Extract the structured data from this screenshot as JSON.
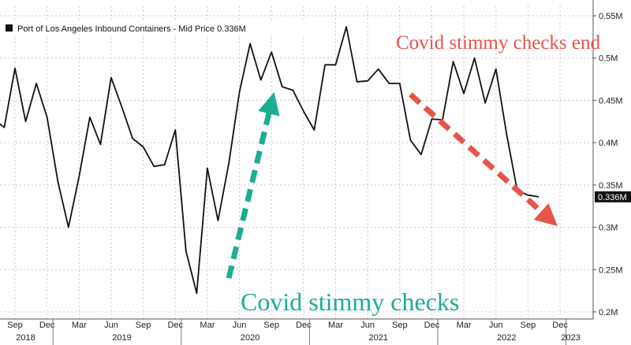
{
  "chart_data": {
    "type": "line",
    "title": "",
    "xlabel": "",
    "ylabel": "",
    "ylim": [
      0.2,
      0.55
    ],
    "y_unit_suffix": "M",
    "yticks": [
      "0.2M",
      "0.25M",
      "0.3M",
      "0.35M",
      "0.4M",
      "0.45M",
      "0.5M",
      "0.55M"
    ],
    "ytick_values": [
      0.2,
      0.25,
      0.3,
      0.35,
      0.4,
      0.45,
      0.5,
      0.55
    ],
    "grid": true,
    "y_axis_side": "right",
    "legend": {
      "placement": "top-left",
      "entries": [
        {
          "label": "Port of Los Angeles Inbound Containers - Mid Price 0.336M",
          "color": "#111111"
        }
      ]
    },
    "x_month_ticks": [
      {
        "label": "Sep",
        "date": "2018-09"
      },
      {
        "label": "Dec",
        "date": "2018-12"
      },
      {
        "label": "Mar",
        "date": "2019-03"
      },
      {
        "label": "Jun",
        "date": "2019-06"
      },
      {
        "label": "Sep",
        "date": "2019-09"
      },
      {
        "label": "Dec",
        "date": "2019-12"
      },
      {
        "label": "Mar",
        "date": "2020-03"
      },
      {
        "label": "Jun",
        "date": "2020-06"
      },
      {
        "label": "Sep",
        "date": "2020-09"
      },
      {
        "label": "Dec",
        "date": "2020-12"
      },
      {
        "label": "Mar",
        "date": "2021-03"
      },
      {
        "label": "Jun",
        "date": "2021-06"
      },
      {
        "label": "Sep",
        "date": "2021-09"
      },
      {
        "label": "Dec",
        "date": "2021-12"
      },
      {
        "label": "Mar",
        "date": "2022-03"
      },
      {
        "label": "Jun",
        "date": "2022-06"
      },
      {
        "label": "Sep",
        "date": "2022-09"
      },
      {
        "label": "Dec",
        "date": "2022-12"
      }
    ],
    "x_year_labels": [
      {
        "label": "2018",
        "date": "2018-10"
      },
      {
        "label": "2019",
        "date": "2019-07"
      },
      {
        "label": "2020",
        "date": "2020-07"
      },
      {
        "label": "2021",
        "date": "2021-07"
      },
      {
        "label": "2022",
        "date": "2022-07"
      },
      {
        "label": "2023",
        "date": "2023-01"
      }
    ],
    "series": [
      {
        "name": "Port of Los Angeles Inbound Containers - Mid Price",
        "color": "#111111",
        "x": [
          "2018-07",
          "2018-08",
          "2018-09",
          "2018-10",
          "2018-11",
          "2018-12",
          "2019-01",
          "2019-02",
          "2019-03",
          "2019-04",
          "2019-05",
          "2019-06",
          "2019-07",
          "2019-08",
          "2019-09",
          "2019-10",
          "2019-11",
          "2019-12",
          "2020-01",
          "2020-02",
          "2020-03",
          "2020-04",
          "2020-05",
          "2020-06",
          "2020-07",
          "2020-08",
          "2020-09",
          "2020-10",
          "2020-11",
          "2020-12",
          "2021-01",
          "2021-02",
          "2021-03",
          "2021-04",
          "2021-05",
          "2021-06",
          "2021-07",
          "2021-08",
          "2021-09",
          "2021-10",
          "2021-11",
          "2021-12",
          "2022-01",
          "2022-02",
          "2022-03",
          "2022-04",
          "2022-05",
          "2022-06",
          "2022-07",
          "2022-08",
          "2022-09",
          "2022-10"
        ],
        "values": [
          0.428,
          0.418,
          0.488,
          0.425,
          0.47,
          0.43,
          0.355,
          0.3,
          0.36,
          0.43,
          0.398,
          0.477,
          0.442,
          0.405,
          0.395,
          0.372,
          0.374,
          0.415,
          0.272,
          0.222,
          0.37,
          0.308,
          0.375,
          0.46,
          0.517,
          0.474,
          0.507,
          0.466,
          0.462,
          0.437,
          0.415,
          0.492,
          0.492,
          0.537,
          0.472,
          0.473,
          0.487,
          0.47,
          0.47,
          0.403,
          0.386,
          0.428,
          0.427,
          0.496,
          0.458,
          0.5,
          0.447,
          0.487,
          0.41,
          0.343,
          0.338,
          0.336
        ]
      }
    ],
    "last_value_label": "0.336M",
    "annotations": [
      {
        "text": "Covid stimmy checks end",
        "color": "#e8534a",
        "arrow_from": [
          "2021-10",
          0.457
        ],
        "arrow_to": [
          "2022-11",
          0.31
        ]
      },
      {
        "text": "Covid stimmy checks",
        "color": "#1aae92",
        "arrow_from": [
          "2020-05",
          0.24
        ],
        "arrow_to": [
          "2020-09",
          0.447
        ]
      }
    ]
  },
  "colors": {
    "background": "#ffffff",
    "grid": "#c8c8c8",
    "line": "#111111",
    "red_annotation": "#e8534a",
    "green_annotation": "#1aae92",
    "last_tag_bg": "#111111"
  }
}
